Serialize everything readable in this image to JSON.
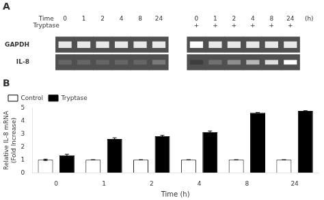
{
  "chart_data": [
    {
      "type": "gel",
      "title": "A",
      "header_labels": [
        "Time",
        "Tryptase"
      ],
      "categories": [
        "0",
        "1",
        "2",
        "4",
        "8",
        "24"
      ],
      "time_unit": "(h)",
      "treatment": [
        null,
        "+"
      ],
      "color": "#505050",
      "series": [
        {
          "name": "GAPDH",
          "color": "#e8e8e8",
          "values": [
            [
              1.0,
              1.0,
              1.0,
              1.0,
              1.0,
              1.0
            ],
            [
              1.2,
              1.0,
              1.0,
              1.0,
              1.0,
              1.0
            ]
          ]
        },
        {
          "name": "IL-8",
          "color": "#cccccc",
          "values": [
            [
              0.5,
              0.5,
              0.5,
              0.5,
              0.5,
              0.6
            ],
            [
              0.3,
              0.55,
              0.7,
              0.9,
              1.1,
              1.3
            ]
          ]
        }
      ]
    },
    {
      "type": "bar",
      "title": "B",
      "categories": [
        "0",
        "1",
        "2",
        "4",
        "8",
        "24"
      ],
      "xlabel": "Time (h)",
      "ylabel": "Relative IL-8 mRNA\n(Fold Increase)",
      "ylim": [
        0,
        5
      ],
      "yticks": [
        0,
        1,
        2,
        3,
        4,
        5
      ],
      "grid": false,
      "legend": "upper left",
      "series": [
        {
          "name": "Control",
          "color": "white",
          "values": [
            1.0,
            1.0,
            1.0,
            1.0,
            1.0,
            1.0
          ],
          "errors": [
            0.05,
            0.0,
            0.0,
            0.0,
            0.0,
            0.0
          ]
        },
        {
          "name": "Tryptase",
          "color": "black",
          "values": [
            1.35,
            2.6,
            2.82,
            3.15,
            4.65,
            4.78
          ],
          "errors": [
            0.08,
            0.1,
            0.07,
            0.08,
            0.0,
            0.0
          ]
        }
      ]
    }
  ]
}
